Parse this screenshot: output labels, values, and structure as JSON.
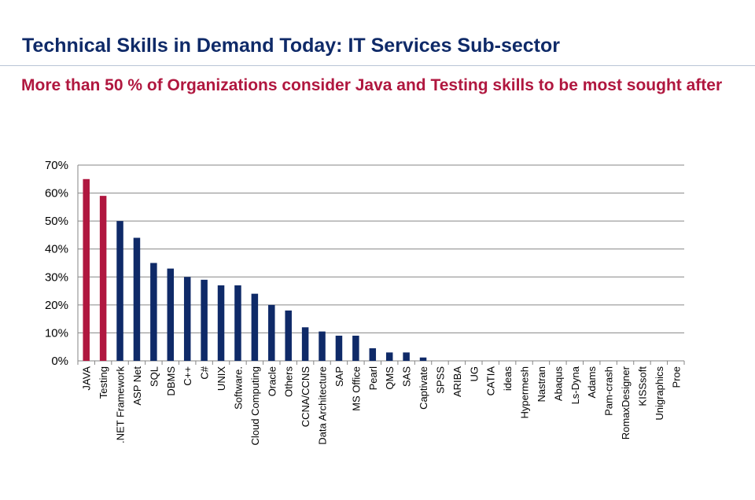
{
  "slide": {
    "title": "Technical Skills in Demand Today: IT Services Sub-sector",
    "subtitle": "More than 50 %  of Organizations consider Java and Testing skills to be most sought after"
  },
  "colors": {
    "title": "#0f2a68",
    "subtitle": "#b0173f",
    "highlight_bar": "#b0173f",
    "bar": "#0f2a68",
    "grid": "#868686"
  },
  "chart_data": {
    "type": "bar",
    "title": "",
    "xlabel": "",
    "ylabel": "",
    "ylim": [
      0,
      0.7
    ],
    "yticks": [
      0,
      0.1,
      0.2,
      0.3,
      0.4,
      0.5,
      0.6,
      0.7
    ],
    "ytick_labels": [
      "0%",
      "10%",
      "20%",
      "30%",
      "40%",
      "50%",
      "60%",
      "70%"
    ],
    "grid": true,
    "categories": [
      "JAVA",
      "Testing",
      ".NET Framework",
      "ASP Net",
      "SQL",
      "DBMS",
      "C++",
      "C#",
      "UNIX",
      "Software.",
      "Cloud Computing",
      "Oracle",
      "Others",
      "CCNA/CCNS",
      "Data Architecture",
      "SAP",
      "MS Office",
      "Pearl",
      "QMS",
      "SAS",
      "Captivate",
      "SPSS",
      "ARIBA",
      "UG",
      "CATIA",
      "ideas",
      "Hypermesh",
      "Nastran",
      "Abaqus",
      "Ls-Dyna",
      "Adams",
      "Pam-crash",
      "RomaxDesigner",
      "KISSsoft",
      "Unigraphics",
      "Proe"
    ],
    "values": [
      0.65,
      0.59,
      0.5,
      0.44,
      0.35,
      0.33,
      0.3,
      0.29,
      0.27,
      0.27,
      0.24,
      0.2,
      0.18,
      0.12,
      0.105,
      0.09,
      0.09,
      0.045,
      0.03,
      0.03,
      0.012,
      0,
      0,
      0,
      0,
      0,
      0,
      0,
      0,
      0,
      0,
      0,
      0,
      0,
      0,
      0
    ],
    "highlighted": [
      "JAVA",
      "Testing"
    ]
  }
}
